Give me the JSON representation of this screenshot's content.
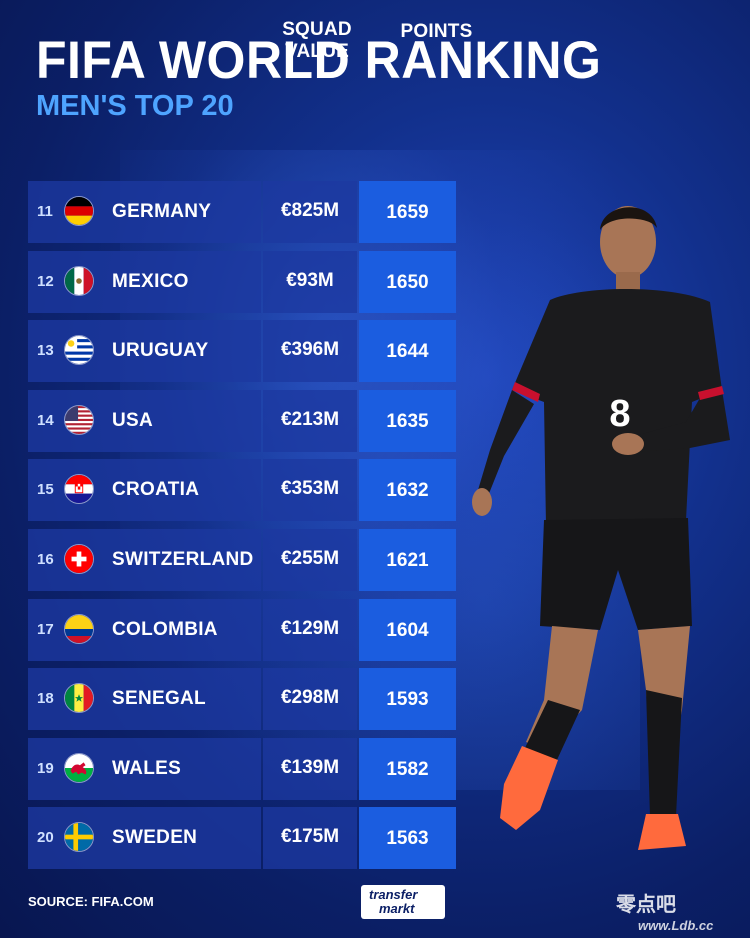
{
  "title": "FIFA WORLD RANKING",
  "subtitle": "MEN'S TOP 20",
  "columns": {
    "value": "SQUAD VALUE",
    "points": "POINTS"
  },
  "rows": [
    {
      "rank": "11",
      "country": "GERMANY",
      "value": "€825M",
      "points": "1659",
      "flag": "germany-flag-icon"
    },
    {
      "rank": "12",
      "country": "MEXICO",
      "value": "€93M",
      "points": "1650",
      "flag": "mexico-flag-icon"
    },
    {
      "rank": "13",
      "country": "URUGUAY",
      "value": "€396M",
      "points": "1644",
      "flag": "uruguay-flag-icon"
    },
    {
      "rank": "14",
      "country": "USA",
      "value": "€213M",
      "points": "1635",
      "flag": "usa-flag-icon"
    },
    {
      "rank": "15",
      "country": "CROATIA",
      "value": "€353M",
      "points": "1632",
      "flag": "croatia-flag-icon"
    },
    {
      "rank": "16",
      "country": "SWITZERLAND",
      "value": "€255M",
      "points": "1621",
      "flag": "switzerland-flag-icon"
    },
    {
      "rank": "17",
      "country": "COLOMBIA",
      "value": "€129M",
      "points": "1604",
      "flag": "colombia-flag-icon"
    },
    {
      "rank": "18",
      "country": "SENEGAL",
      "value": "€298M",
      "points": "1593",
      "flag": "senegal-flag-icon"
    },
    {
      "rank": "19",
      "country": "WALES",
      "value": "€139M",
      "points": "1582",
      "flag": "wales-flag-icon"
    },
    {
      "rank": "20",
      "country": "SWEDEN",
      "value": "€175M",
      "points": "1563",
      "flag": "sweden-flag-icon"
    }
  ],
  "player": {
    "shirt_number": "8"
  },
  "footer": {
    "source": "SOURCE: FIFA.COM",
    "logo_line1": "transfer",
    "logo_line2": "markt",
    "watermark": "零点吧",
    "watermark_url": "www.Ldb.cc"
  },
  "colors": {
    "background": "#0b1f66",
    "subtitle": "#4ea4ff",
    "points_cell": "#1b5de0",
    "row_cell": "#1c38a0"
  }
}
